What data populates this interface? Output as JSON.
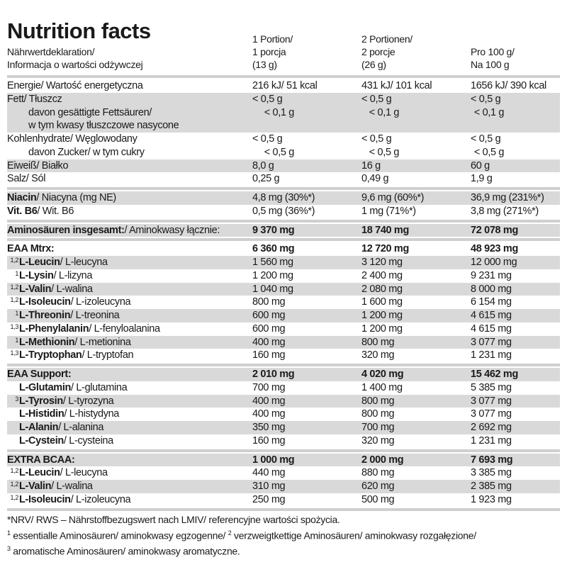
{
  "title": "Nutrition facts",
  "header": {
    "label_lines": [
      "Nährwertdeklaration/",
      "Informacja o wartości odżywczej"
    ],
    "col1": [
      "1 Portion/",
      "1 porcja",
      "(13 g)"
    ],
    "col2": [
      "2 Portionen/",
      "2 porcje",
      "(26 g)"
    ],
    "col3": [
      "Pro 100 g/",
      "Na 100 g"
    ]
  },
  "groups": [
    [
      {
        "label": "Energie/ Wartość energetyczna",
        "values": [
          "216 kJ/ 51 kcal",
          "431 kJ/ 101 kcal",
          "1656 kJ/ 390 kcal"
        ],
        "shade": false
      },
      {
        "label": "Fett/ Tłuszcz",
        "values": [
          "< 0,5 g",
          "< 0,5 g",
          "< 0,5 g"
        ],
        "shade": true
      },
      {
        "label": "davon gesättigte Fettsäuren/",
        "indent": true,
        "values": [
          "< 0,1 g",
          "< 0,1 g",
          "< 0,1 g"
        ],
        "shade": true
      },
      {
        "label": "w tym kwasy tłuszczowe nasycone",
        "indent": true,
        "values": [
          "",
          "",
          ""
        ],
        "shade": true
      },
      {
        "label": "Kohlenhydrate/ Węglowodany",
        "values": [
          "< 0,5 g",
          "< 0,5 g",
          "< 0,5 g"
        ],
        "shade": false
      },
      {
        "label": "davon Zucker/ w tym cukry",
        "indent": true,
        "values": [
          "< 0,5 g",
          "< 0,5 g",
          "< 0,5 g"
        ],
        "shade": false
      },
      {
        "label": "Eiweiß/ Białko",
        "values": [
          "8,0 g",
          "16 g",
          "60 g"
        ],
        "shade": true
      },
      {
        "label": "Salz/ Sól",
        "values": [
          "0,25 g",
          "0,49 g",
          "1,9 g"
        ],
        "shade": false
      }
    ],
    [
      {
        "bold": "Niacin",
        "label": "/ Niacyna (mg NE)",
        "values": [
          "4,8 mg (30%*)",
          "9,6 mg (60%*)",
          "36,9 mg (231%*)"
        ],
        "shade": true
      },
      {
        "bold": "Vit. B6",
        "label": "/ Wit. B6",
        "values": [
          "0,5 mg (36%*)",
          "1 mg (71%*)",
          "3,8 mg (271%*)"
        ],
        "shade": false
      }
    ],
    [
      {
        "bold": "Aminosäuren insgesamt:",
        "label": "/ Aminokwasy łącznie:",
        "values": [
          "9 370 mg",
          "18 740 mg",
          "72 078 mg"
        ],
        "shade": true,
        "total": true
      }
    ],
    [
      {
        "bold": "EAA Mtrx:",
        "label": "",
        "values": [
          "6 360 mg",
          "12 720 mg",
          "48 923 mg"
        ],
        "shade": false,
        "total": true
      },
      {
        "sup": "1,2",
        "bold": "L-Leucin",
        "label": "/ L-leucyna",
        "values": [
          "1 560 mg",
          "3 120 mg",
          "12 000 mg"
        ],
        "shade": true
      },
      {
        "sup": "1",
        "bold": "L-Lysin",
        "label": "/ L-lizyna",
        "values": [
          "1 200 mg",
          "2 400 mg",
          "9 231 mg"
        ],
        "shade": false
      },
      {
        "sup": "1,2",
        "bold": "L-Valin",
        "label": "/ L-walina",
        "values": [
          "1 040 mg",
          "2 080 mg",
          "8 000 mg"
        ],
        "shade": true
      },
      {
        "sup": "1,2",
        "bold": "L-Isoleucin",
        "label": "/ L-izoleucyna",
        "values": [
          "800 mg",
          "1 600 mg",
          "6 154 mg"
        ],
        "shade": false
      },
      {
        "sup": "1",
        "bold": "L-Threonin",
        "label": "/ L-treonina",
        "values": [
          "600 mg",
          "1 200 mg",
          "4 615 mg"
        ],
        "shade": true
      },
      {
        "sup": "1,3",
        "bold": "L-Phenylalanin",
        "label": "/ L-fenyloalanina",
        "values": [
          "600 mg",
          "1 200 mg",
          "4 615 mg"
        ],
        "shade": false
      },
      {
        "sup": "1",
        "bold": "L-Methionin",
        "label": "/ L-metionina",
        "values": [
          "400 mg",
          "800 mg",
          "3 077 mg"
        ],
        "shade": true
      },
      {
        "sup": "1,3",
        "bold": "L-Tryptophan",
        "label": "/ L-tryptofan",
        "values": [
          "160 mg",
          "320 mg",
          "1 231 mg"
        ],
        "shade": false
      }
    ],
    [
      {
        "bold": "EAA Support:",
        "label": "",
        "values": [
          "2 010 mg",
          "4 020 mg",
          "15 462 mg"
        ],
        "shade": true,
        "total": true
      },
      {
        "sup": "",
        "bold": "L-Glutamin",
        "label": "/ L-glutamina",
        "values": [
          "700 mg",
          "1 400 mg",
          "5 385 mg"
        ],
        "shade": false
      },
      {
        "sup": "3",
        "bold": "L-Tyrosin",
        "label": "/ L-tyrozyna",
        "values": [
          "400 mg",
          "800 mg",
          "3 077 mg"
        ],
        "shade": true
      },
      {
        "sup": "",
        "bold": "L-Histidin",
        "label": "/ L-histydyna",
        "values": [
          "400 mg",
          "800 mg",
          "3 077 mg"
        ],
        "shade": false
      },
      {
        "sup": "",
        "bold": "L-Alanin",
        "label": "/ L-alanina",
        "values": [
          "350 mg",
          "700 mg",
          "2 692 mg"
        ],
        "shade": true
      },
      {
        "sup": "",
        "bold": "L-Cystein",
        "label": "/ L-cysteina",
        "values": [
          "160 mg",
          "320 mg",
          "1 231 mg"
        ],
        "shade": false
      }
    ],
    [
      {
        "bold": "EXTRA BCAA:",
        "label": "",
        "values": [
          "1 000 mg",
          "2 000 mg",
          "7 693 mg"
        ],
        "shade": true,
        "total": true
      },
      {
        "sup": "1,2",
        "bold": "L-Leucin",
        "label": "/ L-leucyna",
        "values": [
          "440 mg",
          "880 mg",
          "3 385 mg"
        ],
        "shade": false
      },
      {
        "sup": "1,2",
        "bold": "L-Valin",
        "label": "/ L-walina",
        "values": [
          "310 mg",
          "620 mg",
          "2 385 mg"
        ],
        "shade": true
      },
      {
        "sup": "1,2",
        "bold": "L-Isoleucin",
        "label": "/ L-izoleucyna",
        "values": [
          "250 mg",
          "500 mg",
          "1 923 mg"
        ],
        "shade": false
      }
    ]
  ],
  "footer": {
    "line1": "*NRV/ RWS – Nährstoffbezugswert nach LMIV/ referencyjne wartości spożycia.",
    "line2_sup1": "1",
    "line2_a": " essentialle Aminosäuren/ aminokwasy egzogenne/ ",
    "line2_sup2": "2",
    "line2_b": " verzweigtkettige Aminosäuren/ aminokwasy rozgałęzione/",
    "line3_sup": "3",
    "line3": " aromatische Aminosäuren/ aminokwasy aromatyczne."
  }
}
